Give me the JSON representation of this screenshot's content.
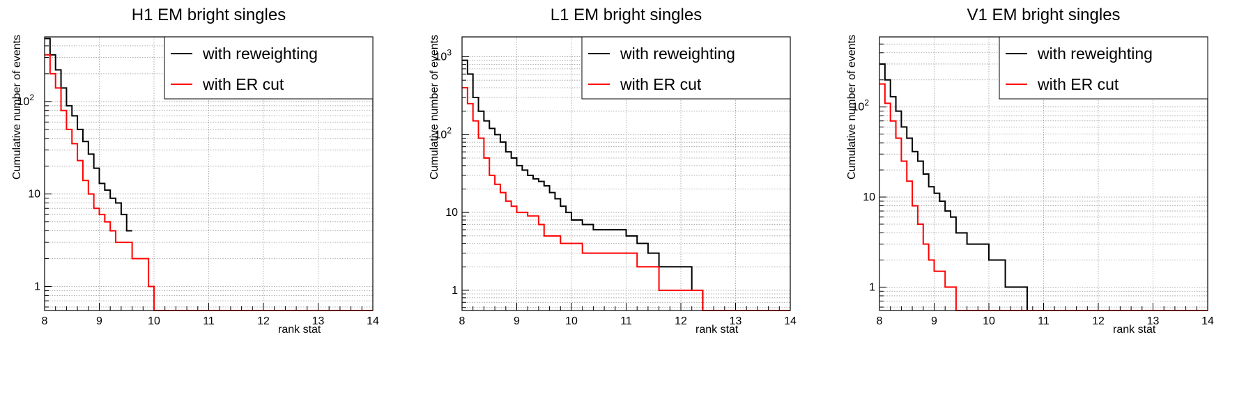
{
  "colors": {
    "reweighting": "#000000",
    "er_cut": "#ff0000",
    "grid": "#9a9a9a"
  },
  "legend": {
    "reweighting": "with reweighting",
    "er_cut": "with ER cut"
  },
  "chart_data": [
    {
      "type": "line",
      "title": "H1 EM bright singles",
      "xlabel": "rank stat",
      "ylabel": "Cumulative number of events",
      "xlim": [
        8,
        14
      ],
      "ylim": [
        0.55,
        500
      ],
      "y_scale": "log",
      "xticks": [
        "8",
        "9",
        "10",
        "11",
        "12",
        "13",
        "14"
      ],
      "yticks": [
        {
          "v": 1,
          "label": "1"
        },
        {
          "v": 10,
          "label": "10"
        },
        {
          "v": 100,
          "label": "10",
          "sup": "2"
        }
      ],
      "legend_position": "top-right",
      "grid": true,
      "series": [
        {
          "name": "with reweighting",
          "color": "black",
          "x": [
            8.0,
            8.1,
            8.2,
            8.3,
            8.4,
            8.5,
            8.6,
            8.7,
            8.8,
            8.9,
            9.0,
            9.1,
            9.2,
            9.3,
            9.4,
            9.5
          ],
          "y": [
            480,
            320,
            220,
            140,
            90,
            70,
            50,
            37,
            27,
            19,
            13,
            11,
            9,
            8,
            6,
            4
          ]
        },
        {
          "name": "with ER cut",
          "color": "red",
          "x": [
            8.0,
            8.1,
            8.2,
            8.3,
            8.4,
            8.5,
            8.6,
            8.7,
            8.8,
            8.9,
            9.0,
            9.1,
            9.2,
            9.3,
            9.4,
            9.6,
            9.9,
            10.0
          ],
          "y": [
            320,
            200,
            140,
            80,
            50,
            35,
            23,
            14,
            10,
            7,
            6,
            5,
            4,
            3,
            3,
            2,
            1,
            0.5
          ]
        }
      ]
    },
    {
      "type": "line",
      "title": "L1 EM bright singles",
      "xlabel": "rank stat",
      "ylabel": "Cumulative number of events",
      "xlim": [
        8,
        14
      ],
      "ylim": [
        0.55,
        1800
      ],
      "y_scale": "log",
      "xticks": [
        "8",
        "9",
        "10",
        "11",
        "12",
        "13",
        "14"
      ],
      "yticks": [
        {
          "v": 1,
          "label": "1"
        },
        {
          "v": 10,
          "label": "10"
        },
        {
          "v": 100,
          "label": "10",
          "sup": "2"
        },
        {
          "v": 1000,
          "label": "10",
          "sup": "3"
        }
      ],
      "legend_position": "top-right",
      "grid": true,
      "series": [
        {
          "name": "with reweighting",
          "color": "black",
          "x": [
            8.0,
            8.1,
            8.2,
            8.3,
            8.4,
            8.5,
            8.6,
            8.7,
            8.8,
            8.9,
            9.0,
            9.1,
            9.2,
            9.3,
            9.4,
            9.5,
            9.6,
            9.7,
            9.8,
            9.9,
            10.0,
            10.2,
            10.4,
            10.6,
            11.0,
            11.2,
            11.4,
            11.6,
            12.2,
            12.4
          ],
          "y": [
            900,
            600,
            300,
            200,
            150,
            120,
            100,
            80,
            60,
            50,
            40,
            35,
            30,
            27,
            25,
            22,
            18,
            15,
            12,
            10,
            8,
            7,
            6,
            6,
            5,
            4,
            3,
            2,
            1,
            0.5
          ]
        },
        {
          "name": "with ER cut",
          "color": "red",
          "x": [
            8.0,
            8.1,
            8.2,
            8.3,
            8.4,
            8.5,
            8.6,
            8.7,
            8.8,
            8.9,
            9.0,
            9.2,
            9.4,
            9.5,
            9.8,
            10.2,
            10.8,
            11.2,
            11.6,
            12.4
          ],
          "y": [
            400,
            250,
            150,
            90,
            50,
            30,
            23,
            18,
            14,
            12,
            10,
            9,
            7,
            5,
            4,
            3,
            3,
            2,
            1,
            0.5
          ]
        }
      ]
    },
    {
      "type": "line",
      "title": "V1 EM bright singles",
      "xlabel": "rank stat",
      "ylabel": "Cumulative number of events",
      "xlim": [
        8,
        14
      ],
      "ylim": [
        0.55,
        600
      ],
      "y_scale": "log",
      "xticks": [
        "8",
        "9",
        "10",
        "11",
        "12",
        "13",
        "14"
      ],
      "yticks": [
        {
          "v": 1,
          "label": "1"
        },
        {
          "v": 10,
          "label": "10"
        },
        {
          "v": 100,
          "label": "10",
          "sup": "2"
        }
      ],
      "legend_position": "top-right",
      "grid": true,
      "series": [
        {
          "name": "with reweighting",
          "color": "black",
          "x": [
            8.0,
            8.1,
            8.2,
            8.3,
            8.4,
            8.5,
            8.6,
            8.7,
            8.8,
            8.9,
            9.0,
            9.1,
            9.2,
            9.3,
            9.4,
            9.6,
            10.0,
            10.3,
            10.7
          ],
          "y": [
            300,
            200,
            130,
            90,
            60,
            45,
            32,
            25,
            18,
            13,
            11,
            9,
            7,
            6,
            4,
            3,
            2,
            1,
            0.5
          ]
        },
        {
          "name": "with ER cut",
          "color": "red",
          "x": [
            8.0,
            8.1,
            8.2,
            8.3,
            8.4,
            8.5,
            8.6,
            8.7,
            8.8,
            8.9,
            9.0,
            9.2,
            9.4
          ],
          "y": [
            180,
            110,
            70,
            45,
            25,
            15,
            8,
            5,
            3,
            2,
            1.5,
            1,
            0.5
          ]
        }
      ]
    }
  ]
}
